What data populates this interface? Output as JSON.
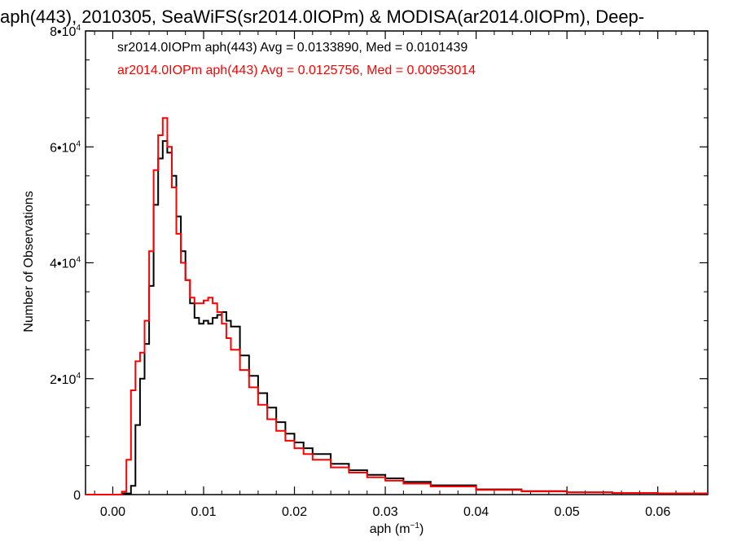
{
  "chart_data": {
    "type": "line",
    "title": "aph(443), 2010305, SeaWiFS(sr2014.0IOPm) & MODISA(ar2014.0IOPm), Deep-",
    "xlabel": "aph (m",
    "xlabel_sup": "−1",
    "xlabel_close": ")",
    "ylabel": "Number of Observations",
    "xlim": [
      -0.003,
      0.0655
    ],
    "ylim": [
      0,
      80000
    ],
    "xticks": [
      0.0,
      0.01,
      0.02,
      0.03,
      0.04,
      0.05,
      0.06
    ],
    "xtick_labels": [
      "0.00",
      "0.01",
      "0.02",
      "0.03",
      "0.04",
      "0.05",
      "0.06"
    ],
    "yticks": [
      {
        "value": 0,
        "base": "0",
        "sup": ""
      },
      {
        "value": 20000,
        "base": "2•10",
        "sup": "4"
      },
      {
        "value": 40000,
        "base": "4•10",
        "sup": "4"
      },
      {
        "value": 60000,
        "base": "6•10",
        "sup": "4"
      },
      {
        "value": 80000,
        "base": "8•10",
        "sup": "4"
      }
    ],
    "legend": [
      {
        "text": "sr2014.0IOPm aph(443) Avg = 0.0133890, Med = 0.0101439",
        "color": "#000000"
      },
      {
        "text": "ar2014.0IOPm aph(443) Avg = 0.0125756, Med = 0.00953014",
        "color": "#ff0000"
      }
    ],
    "series": [
      {
        "color": "#000000",
        "x": [
          -0.003,
          0.001,
          0.002,
          0.0025,
          0.003,
          0.0035,
          0.004,
          0.0045,
          0.005,
          0.0055,
          0.006,
          0.0065,
          0.007,
          0.0075,
          0.008,
          0.0085,
          0.009,
          0.0095,
          0.01,
          0.0105,
          0.011,
          0.0115,
          0.012,
          0.0125,
          0.013,
          0.014,
          0.015,
          0.016,
          0.017,
          0.018,
          0.019,
          0.02,
          0.021,
          0.022,
          0.024,
          0.026,
          0.028,
          0.03,
          0.032,
          0.035,
          0.04,
          0.045,
          0.05,
          0.055,
          0.06,
          0.0655
        ],
        "y": [
          0,
          200,
          1500,
          12000,
          20000,
          26000,
          36000,
          50000,
          58000,
          61000,
          59000,
          55000,
          48000,
          42000,
          37000,
          33000,
          30500,
          29500,
          30000,
          29500,
          30500,
          31000,
          31500,
          30000,
          29000,
          24000,
          20500,
          17500,
          15000,
          12500,
          10500,
          9000,
          8000,
          7000,
          5300,
          4200,
          3400,
          2800,
          2200,
          1600,
          900,
          600,
          400,
          280,
          200,
          150
        ]
      },
      {
        "color": "#ff0000",
        "x": [
          -0.003,
          0.001,
          0.0015,
          0.002,
          0.0025,
          0.003,
          0.0035,
          0.004,
          0.0045,
          0.005,
          0.0055,
          0.006,
          0.0065,
          0.007,
          0.0075,
          0.008,
          0.0085,
          0.009,
          0.0095,
          0.01,
          0.0105,
          0.011,
          0.0115,
          0.012,
          0.0125,
          0.013,
          0.014,
          0.015,
          0.016,
          0.017,
          0.018,
          0.019,
          0.02,
          0.021,
          0.022,
          0.024,
          0.026,
          0.028,
          0.03,
          0.032,
          0.035,
          0.04,
          0.045,
          0.05,
          0.055,
          0.06,
          0.0655
        ],
        "y": [
          0,
          500,
          6000,
          18000,
          23000,
          24500,
          30000,
          42000,
          56000,
          62000,
          65000,
          60000,
          53000,
          45000,
          40000,
          37000,
          34000,
          33000,
          33000,
          33500,
          34000,
          33000,
          31500,
          29500,
          27000,
          25000,
          21500,
          18500,
          15500,
          13000,
          11000,
          9300,
          8000,
          7000,
          6000,
          4700,
          3800,
          3000,
          2400,
          1900,
          1400,
          800,
          550,
          380,
          280,
          200,
          150
        ]
      }
    ]
  }
}
